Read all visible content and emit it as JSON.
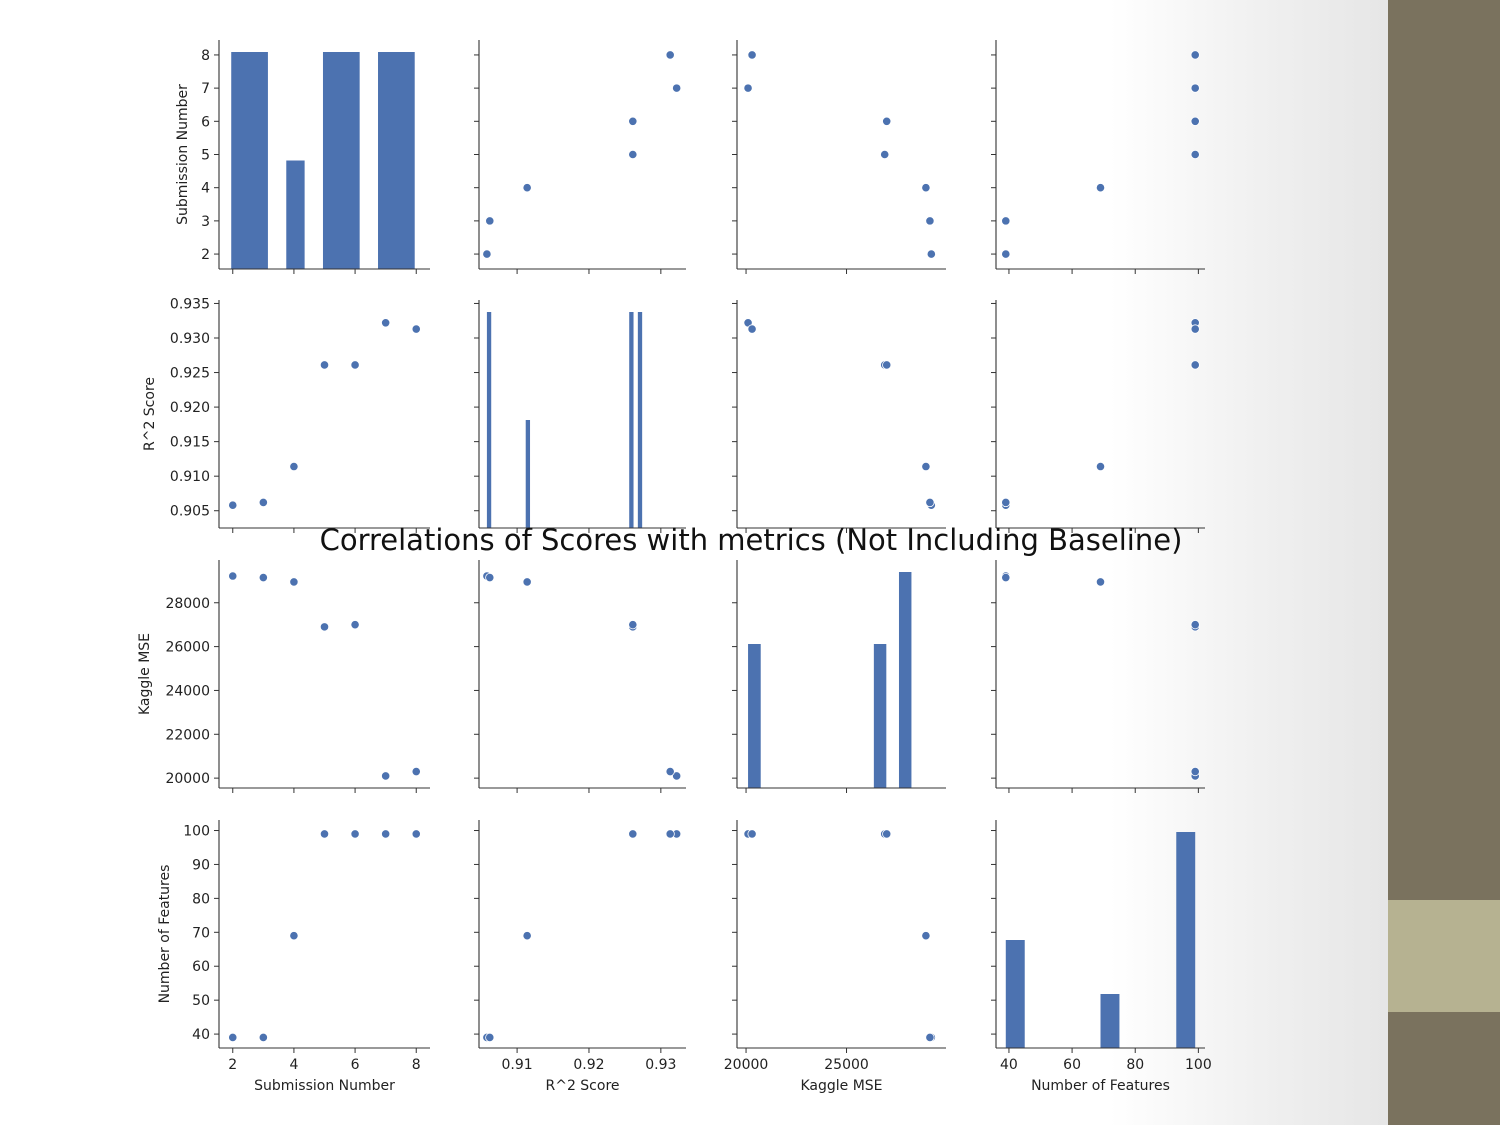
{
  "colors": {
    "marker": "#4c72b0",
    "sidebar": "#7a725e",
    "sidebar_accent": "#b6b291",
    "axis": "#333333",
    "text": "#222222"
  },
  "chart_data": {
    "type": "scatter",
    "subtype": "pairplot",
    "title": "Correlations of Scores with metrics (Not Including Baseline)",
    "grid": false,
    "variables": [
      {
        "key": "submission",
        "label": "Submission Number",
        "xlim": [
          1.55,
          8.45
        ],
        "ylim": [
          1.55,
          8.45
        ],
        "xticks": [
          2,
          4,
          6,
          8
        ],
        "yticks": [
          2,
          3,
          4,
          5,
          6,
          7,
          8
        ],
        "xtick_labels": [
          "2",
          "4",
          "6",
          "8"
        ],
        "ytick_labels": [
          "2",
          "3",
          "4",
          "5",
          "6",
          "7",
          "8"
        ]
      },
      {
        "key": "r2",
        "label": "R^2 Score",
        "xlim": [
          0.9047,
          0.9335
        ],
        "ylim": [
          0.9025,
          0.9355
        ],
        "xticks": [
          0.91,
          0.92,
          0.93
        ],
        "yticks": [
          0.905,
          0.91,
          0.915,
          0.92,
          0.925,
          0.93,
          0.935
        ],
        "xtick_labels": [
          "0.91",
          "0.92",
          "0.93"
        ],
        "ytick_labels": [
          "0.905",
          "0.910",
          "0.915",
          "0.920",
          "0.925",
          "0.930",
          "0.935"
        ]
      },
      {
        "key": "mse",
        "label": "Kaggle MSE",
        "xlim": [
          19550,
          29950
        ],
        "ylim": [
          19550,
          29950
        ],
        "xticks": [
          20000,
          25000
        ],
        "yticks": [
          20000,
          22000,
          24000,
          26000,
          28000
        ],
        "xtick_labels": [
          "20000",
          "25000"
        ],
        "ytick_labels": [
          "20000",
          "22000",
          "24000",
          "26000",
          "28000"
        ]
      },
      {
        "key": "features",
        "label": "Number of Features",
        "xlim": [
          35.9,
          102.1
        ],
        "ylim": [
          35.9,
          103.1
        ],
        "xticks": [
          40,
          60,
          80,
          100
        ],
        "yticks": [
          40,
          50,
          60,
          70,
          80,
          90,
          100
        ],
        "xtick_labels": [
          "40",
          "60",
          "80",
          "100"
        ],
        "ytick_labels": [
          "40",
          "50",
          "60",
          "70",
          "80",
          "90",
          "100"
        ]
      }
    ],
    "points": {
      "submission": [
        2,
        3,
        4,
        5,
        6,
        7,
        8
      ],
      "r2": [
        0.9058,
        0.9062,
        0.9114,
        0.9261,
        0.9261,
        0.9322,
        0.9313
      ],
      "mse": [
        29220,
        29150,
        28950,
        26900,
        27000,
        20100,
        20300
      ],
      "features": [
        39,
        39,
        69,
        99,
        99,
        99,
        99
      ]
    },
    "histograms": [
      {
        "variable": "submission",
        "bins": [
          [
            1.95,
            3.15
          ],
          [
            3.75,
            4.35
          ],
          [
            4.95,
            6.15
          ],
          [
            6.75,
            7.95
          ]
        ],
        "counts": [
          2,
          1,
          2,
          2
        ]
      },
      {
        "variable": "r2",
        "bins": [
          [
            0.9058,
            0.9064
          ],
          [
            0.9112,
            0.9118
          ],
          [
            0.9256,
            0.9262
          ],
          [
            0.9268,
            0.9274
          ]
        ],
        "counts": [
          2,
          1,
          2,
          2
        ]
      },
      {
        "variable": "mse",
        "bins": [
          [
            20100,
            20730
          ],
          [
            26360,
            26980
          ],
          [
            27610,
            28230
          ]
        ],
        "counts": [
          2,
          2,
          3
        ]
      },
      {
        "variable": "features",
        "bins": [
          [
            39,
            45
          ],
          [
            69,
            75
          ],
          [
            93,
            99
          ]
        ],
        "counts": [
          2,
          1,
          4
        ]
      }
    ]
  }
}
